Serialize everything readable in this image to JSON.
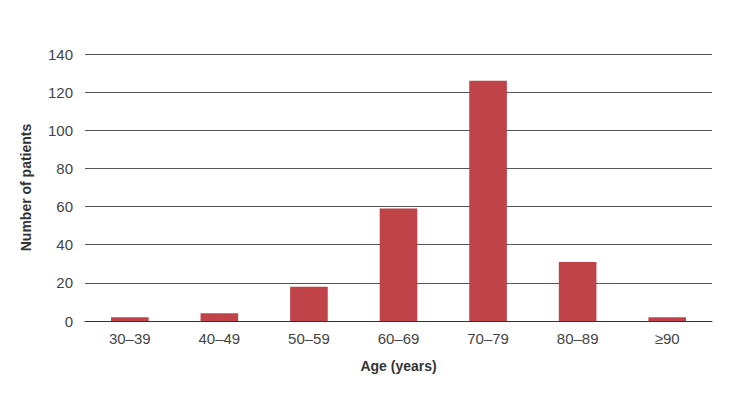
{
  "chart_data": {
    "type": "bar",
    "x_label": "Age (years)",
    "y_label": "Number of patients",
    "categories": [
      "30–39",
      "40–49",
      "50–59",
      "60–69",
      "70–79",
      "80–89",
      "≥90"
    ],
    "values": [
      2,
      4,
      18,
      59,
      126,
      31,
      2
    ],
    "color": "#c0434a",
    "ylim": [
      0,
      140
    ],
    "yticks": [
      0,
      20,
      40,
      60,
      80,
      100,
      120,
      140
    ],
    "grid": true
  }
}
